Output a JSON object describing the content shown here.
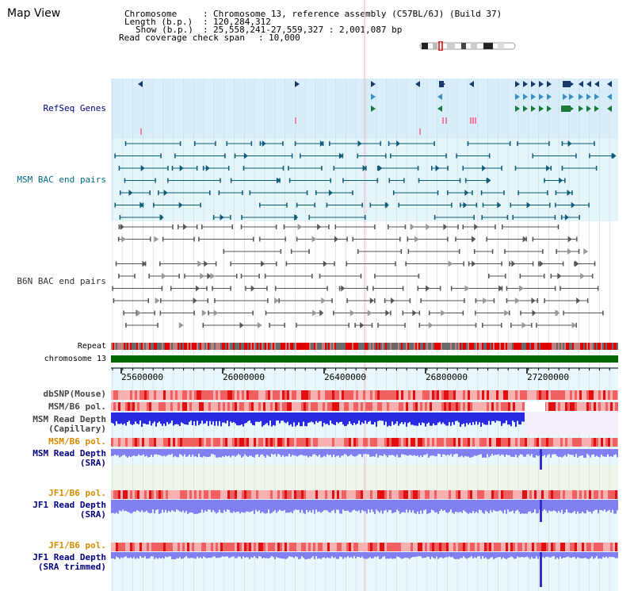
{
  "page": {
    "title": "Map View"
  },
  "info": {
    "chromosome_key": "Chromosome",
    "chromosome_value": "Chromosome 13, reference assembly (C57BL/6J) (Build 37)",
    "length_key": "Length (b.p.)",
    "length_value": "120,284,312",
    "show_key": "Show (b.p.)",
    "show_value": "25,558,241-27,559,327 : 2,001,087 bp",
    "coverage_key": "Read coverage check span",
    "coverage_value": "10,000"
  },
  "tracks": {
    "refseq": "RefSeq Genes",
    "msm_bac": "MSM BAC end pairs",
    "b6n_bac": "B6N BAC end pairs",
    "repeat": "Repeat",
    "chromosome": "chromosome 13",
    "dbsnp": "dbSNP(Mouse)",
    "msm_b6_pol_1": "MSM/B6 pol.",
    "msm_depth_cap_1": "MSM Read Depth",
    "msm_depth_cap_2": "(Capillary)",
    "msm_b6_pol_2": "MSM/B6 pol.",
    "msm_depth_sra_1": "MSM Read Depth",
    "msm_depth_sra_2": "(SRA)",
    "jf1_b6_pol_1": "JF1/B6 pol.",
    "jf1_depth_sra_1": "JF1 Read Depth",
    "jf1_depth_sra_2": "(SRA)",
    "jf1_b6_pol_2": "JF1/B6 pol.",
    "jf1_depth_trim_1": "JF1 Read Depth",
    "jf1_depth_trim_2": "(SRA trimmed)"
  },
  "axis": {
    "ticks": [
      "25600000",
      "26000000",
      "26400000",
      "26800000",
      "27200000"
    ]
  },
  "colors": {
    "refseq_bg": "#d8eefa",
    "msm_bg": "#e4f6fa",
    "b6n_bg": "#ffffff",
    "gene_navy": "#1a3a6e",
    "gene_blue": "#3a8ec0",
    "gene_green": "#1e7a3a",
    "msm_line": "#0e5b78",
    "b6n_line": "#555555",
    "chrom_green": "#006600",
    "label_blue": "#000080",
    "label_teal": "#006a80",
    "label_orange": "#d88a00",
    "depth_dark": "#2a2ae0",
    "depth_light": "#8080f0"
  }
}
